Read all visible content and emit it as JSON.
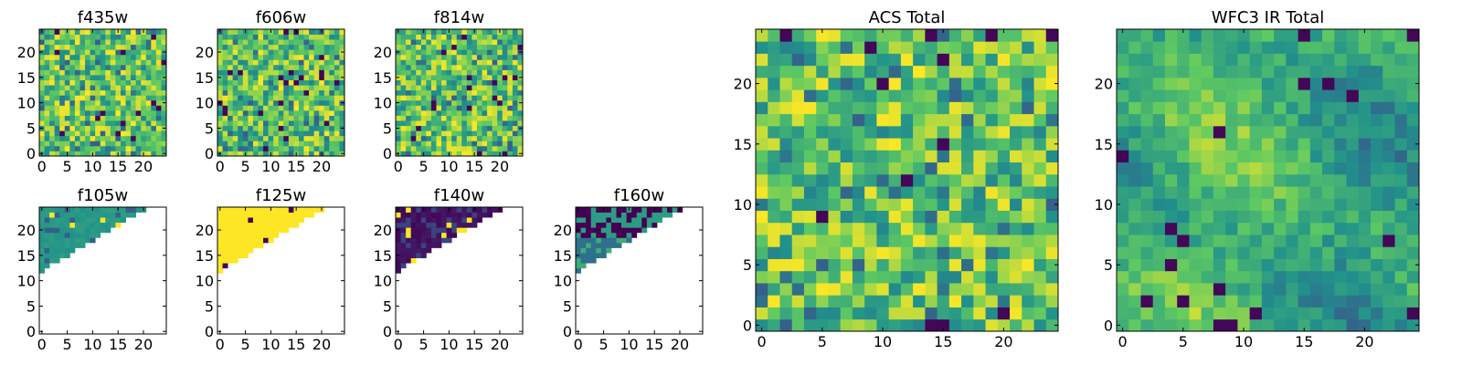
{
  "chart_data": [
    {
      "type": "heatmap",
      "title": "f435w",
      "grid": [
        25,
        25
      ],
      "xlim": [
        -0.5,
        24.5
      ],
      "ylim": [
        -0.5,
        24.5
      ],
      "xticks": [
        "0",
        "5",
        "10",
        "15",
        "20"
      ],
      "yticks": [
        "0",
        "5",
        "10",
        "15",
        "20"
      ],
      "colormap": "viridis",
      "profile": "noise",
      "seed": 11
    },
    {
      "type": "heatmap",
      "title": "f606w",
      "grid": [
        25,
        25
      ],
      "xlim": [
        -0.5,
        24.5
      ],
      "ylim": [
        -0.5,
        24.5
      ],
      "xticks": [
        "0",
        "5",
        "10",
        "15",
        "20"
      ],
      "yticks": [
        "0",
        "5",
        "10",
        "15",
        "20"
      ],
      "colormap": "viridis",
      "profile": "noise",
      "seed": 23
    },
    {
      "type": "heatmap",
      "title": "f814w",
      "grid": [
        25,
        25
      ],
      "xlim": [
        -0.5,
        24.5
      ],
      "ylim": [
        -0.5,
        24.5
      ],
      "xticks": [
        "0",
        "5",
        "10",
        "15",
        "20"
      ],
      "yticks": [
        "0",
        "5",
        "10",
        "15",
        "20"
      ],
      "colormap": "viridis",
      "profile": "noise",
      "seed": 37
    },
    {
      "type": "heatmap",
      "title": "f105w",
      "grid": [
        25,
        25
      ],
      "xlim": [
        -0.5,
        24.5
      ],
      "ylim": [
        -0.5,
        24.5
      ],
      "xticks": [
        "0",
        "5",
        "10",
        "15",
        "20"
      ],
      "yticks": [
        "0",
        "5",
        "10",
        "15",
        "20"
      ],
      "colormap": "viridis",
      "profile": "teal",
      "masked": "lower-right triangle",
      "seed": 41
    },
    {
      "type": "heatmap",
      "title": "f125w",
      "grid": [
        25,
        25
      ],
      "xlim": [
        -0.5,
        24.5
      ],
      "ylim": [
        -0.5,
        24.5
      ],
      "xticks": [
        "0",
        "5",
        "10",
        "15",
        "20"
      ],
      "yticks": [
        "0",
        "5",
        "10",
        "15",
        "20"
      ],
      "colormap": "viridis",
      "profile": "yellow",
      "masked": "lower-right triangle",
      "seed": 53
    },
    {
      "type": "heatmap",
      "title": "f140w",
      "grid": [
        25,
        25
      ],
      "xlim": [
        -0.5,
        24.5
      ],
      "ylim": [
        -0.5,
        24.5
      ],
      "xticks": [
        "0",
        "5",
        "10",
        "15",
        "20"
      ],
      "yticks": [
        "0",
        "5",
        "10",
        "15",
        "20"
      ],
      "colormap": "viridis",
      "profile": "dark",
      "masked": "lower-right triangle",
      "seed": 67
    },
    {
      "type": "heatmap",
      "title": "f160w",
      "grid": [
        25,
        25
      ],
      "xlim": [
        -0.5,
        24.5
      ],
      "ylim": [
        -0.5,
        24.5
      ],
      "xticks": [
        "0",
        "5",
        "10",
        "15",
        "20"
      ],
      "yticks": [
        "0",
        "5",
        "10",
        "15",
        "20"
      ],
      "colormap": "viridis",
      "profile": "mixed",
      "masked": "lower-right triangle",
      "seed": 79
    },
    {
      "type": "heatmap",
      "title": "ACS Total",
      "grid": [
        25,
        25
      ],
      "xlim": [
        -0.5,
        24.5
      ],
      "ylim": [
        -0.5,
        24.5
      ],
      "xticks": [
        "0",
        "5",
        "10",
        "15",
        "20"
      ],
      "yticks": [
        "0",
        "5",
        "10",
        "15",
        "20"
      ],
      "colormap": "viridis",
      "profile": "noise",
      "seed": 97
    },
    {
      "type": "heatmap",
      "title": "WFC3 IR Total",
      "grid": [
        25,
        25
      ],
      "xlim": [
        -0.5,
        24.5
      ],
      "ylim": [
        -0.5,
        24.5
      ],
      "xticks": [
        "0",
        "5",
        "10",
        "15",
        "20"
      ],
      "yticks": [
        "0",
        "5",
        "10",
        "15",
        "20"
      ],
      "colormap": "viridis",
      "profile": "smooth",
      "seed": 113
    }
  ]
}
